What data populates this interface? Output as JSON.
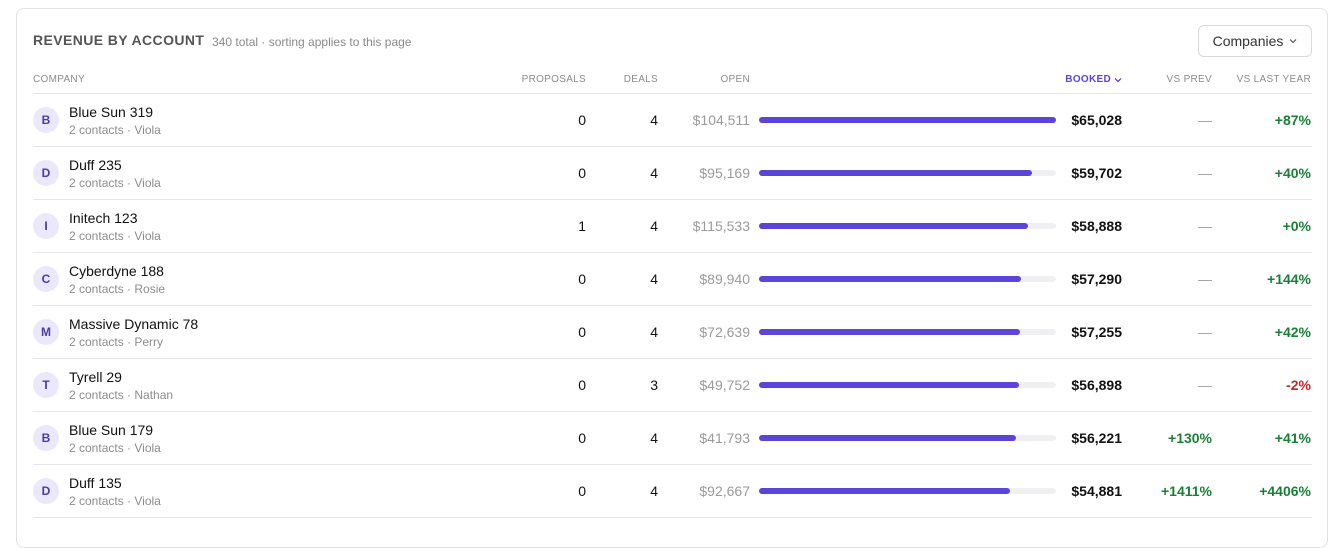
{
  "header": {
    "title": "REVENUE BY ACCOUNT",
    "subtitle": "340 total · sorting applies to this page",
    "filter": "Companies"
  },
  "table": {
    "columns": [
      "COMPANY",
      "PROPOSALS",
      "DEALS",
      "OPEN",
      "BOOKED",
      "VS PREV",
      "VS LAST YEAR"
    ],
    "rows": [
      {
        "initial": "B",
        "name": "Blue Sun 319",
        "detail": "2 contacts · Viola",
        "proposals": "0",
        "deals": "4",
        "open": "$104,511",
        "booked": {
          "value": 65028,
          "label": "$65,028"
        },
        "vs_prev": "—",
        "vs_last_year": "+87%"
      },
      {
        "initial": "D",
        "name": "Duff 235",
        "detail": "2 contacts · Viola",
        "proposals": "0",
        "deals": "4",
        "open": "$95,169",
        "booked": {
          "value": 59702,
          "label": "$59,702"
        },
        "vs_prev": "—",
        "vs_last_year": "+40%"
      },
      {
        "initial": "I",
        "name": "Initech 123",
        "detail": "2 contacts · Viola",
        "proposals": "1",
        "deals": "4",
        "open": "$115,533",
        "booked": {
          "value": 58888,
          "label": "$58,888"
        },
        "vs_prev": "—",
        "vs_last_year": "+0%"
      },
      {
        "initial": "C",
        "name": "Cyberdyne 188",
        "detail": "2 contacts · Rosie",
        "proposals": "0",
        "deals": "4",
        "open": "$89,940",
        "booked": {
          "value": 57290,
          "label": "$57,290"
        },
        "vs_prev": "—",
        "vs_last_year": "+144%"
      },
      {
        "initial": "M",
        "name": "Massive Dynamic 78",
        "detail": "2 contacts · Perry",
        "proposals": "0",
        "deals": "4",
        "open": "$72,639",
        "booked": {
          "value": 57255,
          "label": "$57,255"
        },
        "vs_prev": "—",
        "vs_last_year": "+42%"
      },
      {
        "initial": "T",
        "name": "Tyrell 29",
        "detail": "2 contacts · Nathan",
        "proposals": "0",
        "deals": "3",
        "open": "$49,752",
        "booked": {
          "value": 56898,
          "label": "$56,898"
        },
        "vs_prev": "—",
        "vs_last_year": "-2%"
      },
      {
        "initial": "B",
        "name": "Blue Sun 179",
        "detail": "2 contacts · Viola",
        "proposals": "0",
        "deals": "4",
        "open": "$41,793",
        "booked": {
          "value": 56221,
          "label": "$56,221"
        },
        "vs_prev": "+130%",
        "vs_last_year": "+41%"
      },
      {
        "initial": "D",
        "name": "Duff 135",
        "detail": "2 contacts · Viola",
        "proposals": "0",
        "deals": "4",
        "open": "$92,667",
        "booked": {
          "value": 54881,
          "label": "$54,881"
        },
        "vs_prev": "+1411%",
        "vs_last_year": "+4406%"
      }
    ]
  }
}
